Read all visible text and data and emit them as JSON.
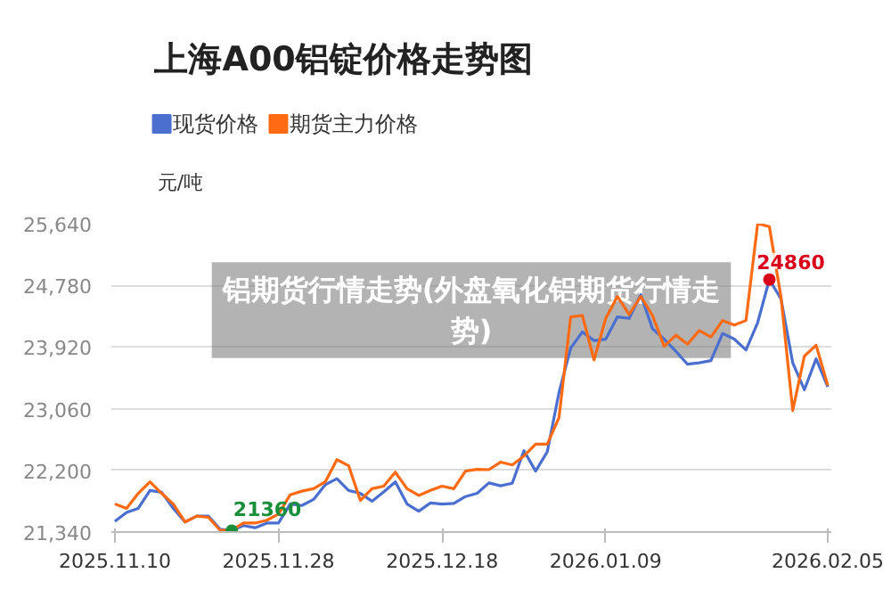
{
  "chart_data": {
    "type": "line",
    "title": "上海A00铝锭价格走势图",
    "ylabel": "元/吨",
    "categories": [
      "2025.11.10",
      null,
      null,
      null,
      null,
      null,
      null,
      null,
      null,
      null,
      null,
      null,
      null,
      null,
      "2025.11.28",
      null,
      null,
      null,
      null,
      null,
      null,
      null,
      null,
      null,
      null,
      null,
      null,
      null,
      "2025.12.18",
      null,
      null,
      null,
      null,
      null,
      null,
      null,
      null,
      null,
      null,
      null,
      null,
      null,
      "2026.01.09",
      null,
      null,
      null,
      null,
      null,
      null,
      null,
      null,
      null,
      null,
      null,
      null,
      null,
      null,
      null,
      null,
      null,
      null,
      "2026.02.05"
    ],
    "series": [
      {
        "name": "现货价格",
        "color": "#4a6fcf",
        "values": [
          21489,
          21613,
          21670,
          21919,
          21894,
          21670,
          21480,
          21563,
          21563,
          21380,
          21360,
          21430,
          21400,
          21465,
          21465,
          21730,
          21710,
          21795,
          22000,
          22085,
          21920,
          21880,
          21770,
          21900,
          22040,
          21730,
          21630,
          21745,
          21730,
          21740,
          21835,
          21880,
          22025,
          21985,
          22020,
          22475,
          22190,
          22460,
          23285,
          23905,
          24130,
          24010,
          24030,
          24340,
          24320,
          24650,
          24175,
          24030,
          23860,
          23680,
          23700,
          23730,
          24110,
          24030,
          23880,
          24260,
          24860,
          24590,
          23700,
          23325,
          23755,
          23365
        ]
      },
      {
        "name": "期货主力价格",
        "color": "#ff6a13",
        "values": [
          21730,
          21670,
          21880,
          22040,
          21880,
          21730,
          21480,
          21563,
          21545,
          21365,
          21365,
          21465,
          21465,
          21505,
          21590,
          21860,
          21910,
          21945,
          22040,
          22350,
          22265,
          21780,
          21945,
          21980,
          22175,
          21945,
          21850,
          21920,
          21980,
          21945,
          22190,
          22215,
          22210,
          22315,
          22275,
          22400,
          22565,
          22565,
          22935,
          24340,
          24360,
          23740,
          24320,
          24625,
          24375,
          24625,
          24360,
          23930,
          24085,
          23960,
          24150,
          24060,
          24290,
          24225,
          24290,
          25640,
          25600,
          24610,
          23035,
          23795,
          23945,
          23385
        ]
      }
    ],
    "ylim": [
      21340,
      25640
    ],
    "yticks": [
      {
        "value": 21340,
        "label": "21,340"
      },
      {
        "value": 22200,
        "label": "22,200"
      },
      {
        "value": 23060,
        "label": "23,060"
      },
      {
        "value": 23920,
        "label": "23,920"
      },
      {
        "value": 24780,
        "label": "24,780"
      },
      {
        "value": 25640,
        "label": "25,640"
      }
    ],
    "grid": "y",
    "legend": "top left",
    "marker": "none",
    "line_style": "solid",
    "annotations": [
      "21360",
      "24860",
      "铝期货行情走势(外盘氧化铝期货行情走势)"
    ]
  }
}
